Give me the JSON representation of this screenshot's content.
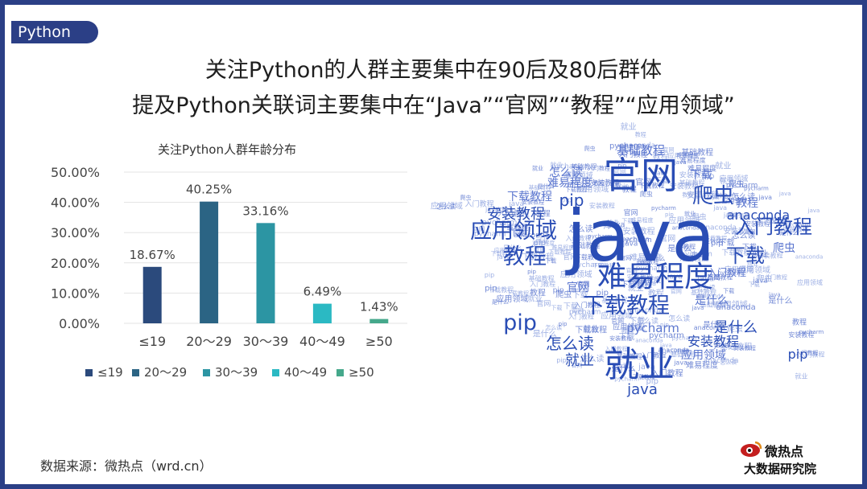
{
  "tag": "Python",
  "headline": {
    "line1": "关注Python的人群主要集中在90后及80后群体",
    "line2": "提及Python关联词主要集中在“Java”“官网”“教程”“应用领域”"
  },
  "chart_data": {
    "type": "bar",
    "title": "关注Python人群年龄分布",
    "categories": [
      "≤19",
      "20～29",
      "30～39",
      "40～49",
      "≥50"
    ],
    "values": [
      18.67,
      40.25,
      33.16,
      6.49,
      1.43
    ],
    "value_labels": [
      "18.67%",
      "40.25%",
      "33.16%",
      "6.49%",
      "1.43%"
    ],
    "ylim": [
      0,
      50
    ],
    "yticks": [
      "0.00%",
      "10.00%",
      "20.00%",
      "30.00%",
      "40.00%",
      "50.00%"
    ],
    "colors": [
      "#2b4a7c",
      "#2b6484",
      "#2c95a3",
      "#2bb9c3",
      "#45a88b"
    ],
    "legend": [
      "≤19",
      "20～29",
      "30～39",
      "40～49",
      "≥50"
    ],
    "legend_position": "bottom",
    "grid": true
  },
  "wordcloud": {
    "colors": [
      "#2a4db5",
      "#5b76cf",
      "#8ea3e0"
    ],
    "words": [
      {
        "text": "java",
        "weight": 10
      },
      {
        "text": "官网",
        "weight": 7
      },
      {
        "text": "就业",
        "weight": 6
      },
      {
        "text": "难易程度",
        "weight": 5
      },
      {
        "text": "下载教程",
        "weight": 4
      },
      {
        "text": "应用领域",
        "weight": 4
      },
      {
        "text": "教程",
        "weight": 4
      },
      {
        "text": "入门教程",
        "weight": 4
      },
      {
        "text": "爬虫",
        "weight": 4
      },
      {
        "text": "下载",
        "weight": 4
      },
      {
        "text": "pip",
        "weight": 4
      },
      {
        "text": "怎么读",
        "weight": 3
      },
      {
        "text": "是什么",
        "weight": 3
      },
      {
        "text": "安装教程",
        "weight": 3
      },
      {
        "text": "anaconda",
        "weight": 3
      },
      {
        "text": "pycharm",
        "weight": 3
      },
      {
        "text": "基础教程",
        "weight": 3
      }
    ]
  },
  "source": "数据来源：微热点（wrd.cn）",
  "logo": {
    "line1": "微热点",
    "line2": "大数据研究院"
  }
}
